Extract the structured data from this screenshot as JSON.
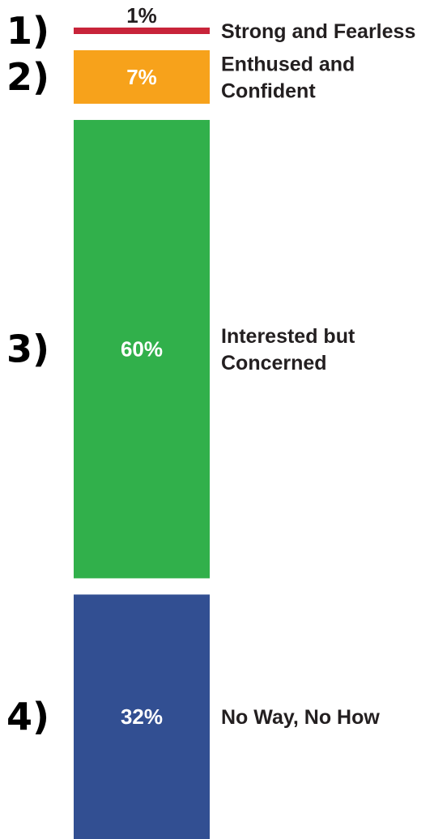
{
  "chart_data": {
    "type": "bar",
    "orientation": "stacked-vertical",
    "title": "",
    "xlabel": "",
    "ylabel": "",
    "unit": "%",
    "series": [
      {
        "number": "1)",
        "category": "Strong and Fearless",
        "category_lines": [
          "Strong and Fearless"
        ],
        "value": 1,
        "label": "1%",
        "color": "#c8243a",
        "label_color": "#231f20"
      },
      {
        "number": "2)",
        "category": "Enthused and Confident",
        "category_lines": [
          "Enthused and",
          "Confident"
        ],
        "value": 7,
        "label": "7%",
        "color": "#f7a21b",
        "label_color": "#ffffff"
      },
      {
        "number": "3)",
        "category": "Interested but Concerned",
        "category_lines": [
          "Interested but",
          "Concerned"
        ],
        "value": 60,
        "label": "60%",
        "color": "#31b04b",
        "label_color": "#ffffff"
      },
      {
        "number": "4)",
        "category": "No Way, No How",
        "category_lines": [
          "No Way, No How"
        ],
        "value": 32,
        "label": "32%",
        "color": "#324f92",
        "label_color": "#ffffff"
      }
    ],
    "grid": false,
    "legend": "none"
  }
}
